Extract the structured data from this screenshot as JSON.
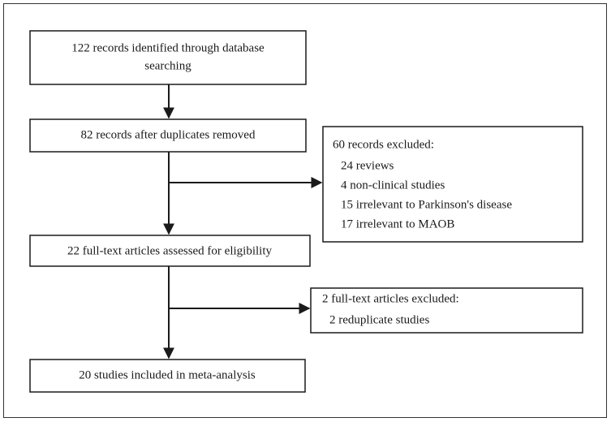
{
  "nodes": [
    {
      "lines": [
        "122 records identified through database",
        "searching"
      ]
    },
    {
      "lines": [
        "82 records after duplicates removed"
      ]
    },
    {
      "lines": [
        "60 records excluded:",
        "24 reviews",
        "4 non-clinical studies",
        "15 irrelevant to Parkinson's disease",
        "17 irrelevant to MAOB"
      ]
    },
    {
      "lines": [
        "22 full-text articles assessed for eligibility"
      ]
    },
    {
      "lines": [
        "2 full-text articles excluded:",
        "2 reduplicate studies"
      ]
    },
    {
      "lines": [
        "20 studies included in meta-analysis"
      ]
    }
  ]
}
